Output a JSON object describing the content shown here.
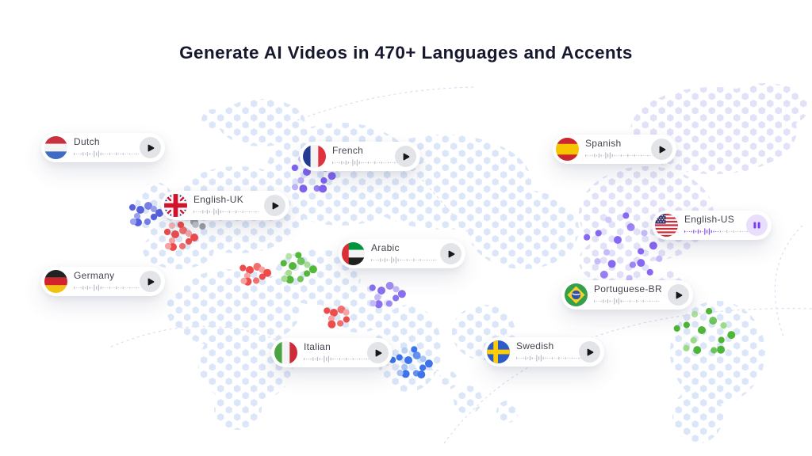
{
  "title": "Generate AI Videos in 470+ Languages and Accents",
  "pills": [
    {
      "label": "Dutch",
      "flag": "dutch",
      "state": "play",
      "button_icon": "play-icon"
    },
    {
      "label": "French",
      "flag": "french",
      "state": "play",
      "button_icon": "play-icon"
    },
    {
      "label": "Spanish",
      "flag": "spanish",
      "state": "play",
      "button_icon": "play-icon"
    },
    {
      "label": "English-UK",
      "flag": "english-uk",
      "state": "play",
      "button_icon": "play-icon"
    },
    {
      "label": "English-US",
      "flag": "english-us",
      "state": "pause",
      "button_icon": "pause-icon"
    },
    {
      "label": "Arabic",
      "flag": "arabic",
      "state": "play",
      "button_icon": "play-icon"
    },
    {
      "label": "Germany",
      "flag": "germany",
      "state": "play",
      "button_icon": "play-icon"
    },
    {
      "label": "Portuguese-BR",
      "flag": "portuguese-br",
      "state": "play",
      "button_icon": "play-icon"
    },
    {
      "label": "Italian",
      "flag": "italian",
      "state": "play",
      "button_icon": "play-icon"
    },
    {
      "label": "Swedish",
      "flag": "swedish",
      "state": "play",
      "button_icon": "play-icon"
    }
  ],
  "colors": {
    "title_text": "#16182d",
    "label_text": "#44454f",
    "accent_purple": "#7b3df0",
    "pause_button_bg": "#e9defc",
    "play_button_bg": "#e3e4e8",
    "play_glyph": "#17181c",
    "waveform_gray": "#b9bdc7",
    "waveform_played": "#8450f0",
    "map_dot_blue": "#dbe6f8",
    "map_dot_lavender": "#e1e1f7",
    "cluster_blue": "#3d74ec",
    "cluster_red": "#ee4b4b",
    "cluster_green": "#4db636",
    "cluster_purple": "#8668f2"
  }
}
